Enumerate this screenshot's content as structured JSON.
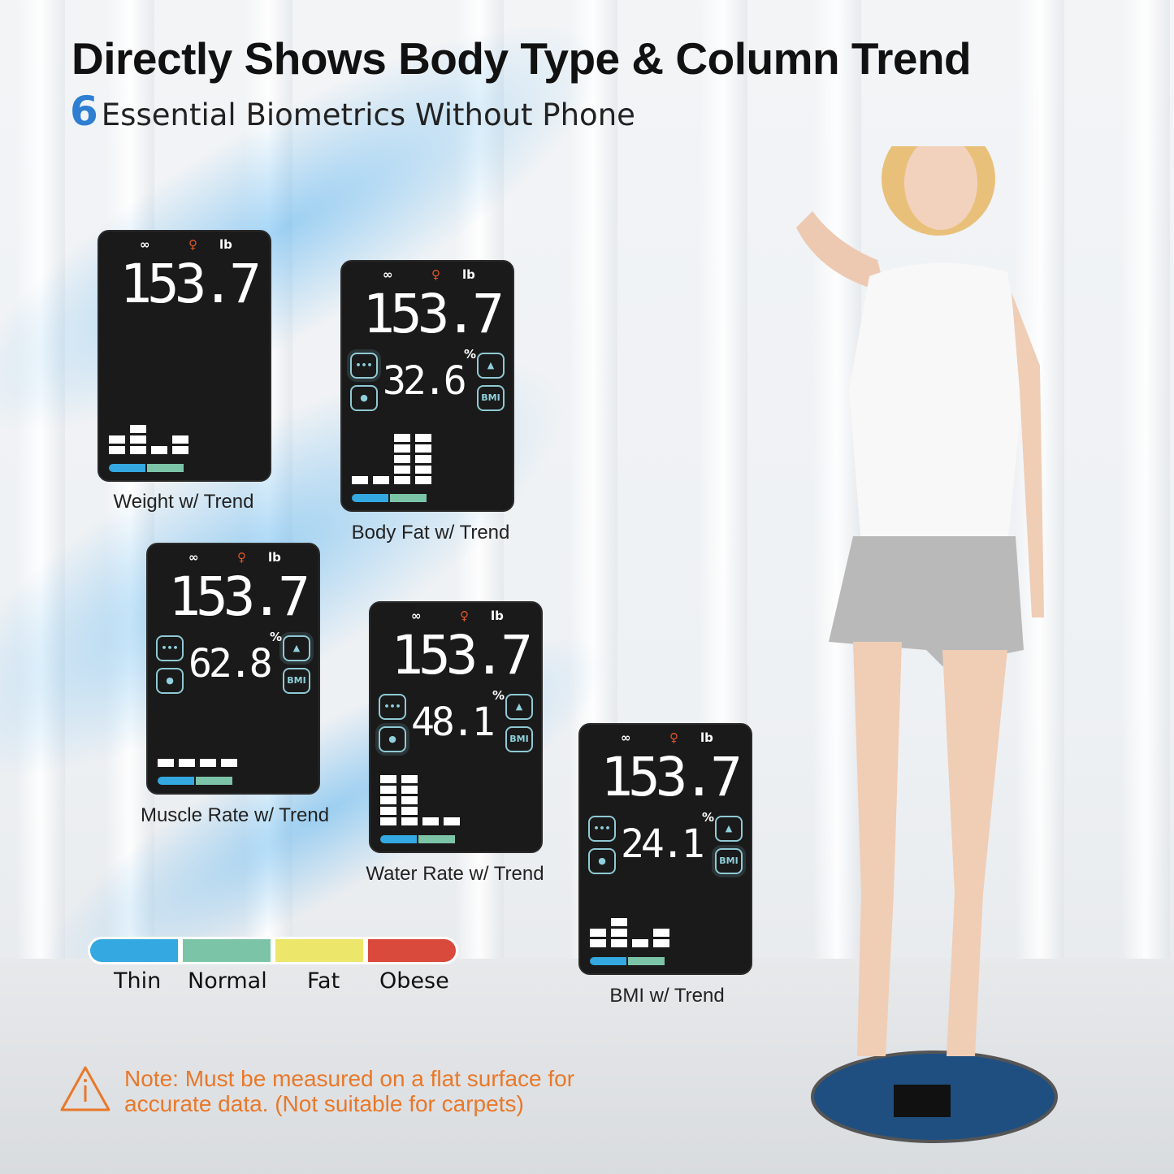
{
  "header": {
    "title": "Directly Shows Body Type & Column Trend",
    "subtitle_number": "6",
    "subtitle": "Essential Biometrics Without Phone"
  },
  "display_common": {
    "link_icon": "link-icon",
    "gender_icon": "female-icon",
    "unit": "lb",
    "percent": "%",
    "bmi_icon_label": "BMI"
  },
  "panels": [
    {
      "label": "Weight w/ Trend",
      "weight": "153.7",
      "secondary": null,
      "active": null,
      "bars": [
        2,
        3,
        1,
        2
      ]
    },
    {
      "label": "Body Fat w/ Trend",
      "weight": "153.7",
      "secondary": "32.6",
      "active": "fat",
      "bars": [
        1,
        1,
        5,
        5
      ]
    },
    {
      "label": "Muscle Rate w/ Trend",
      "weight": "153.7",
      "secondary": "62.8",
      "active": "muscle",
      "bars": [
        1,
        1,
        1,
        1
      ]
    },
    {
      "label": "Water Rate w/ Trend",
      "weight": "153.7",
      "secondary": "48.1",
      "active": "water",
      "bars": [
        5,
        5,
        1,
        1
      ]
    },
    {
      "label": "BMI w/ Trend",
      "weight": "153.7",
      "secondary": "24.1",
      "active": "bmi",
      "bars": [
        2,
        3,
        1,
        2
      ]
    }
  ],
  "legend": {
    "items": [
      {
        "label": "Thin",
        "color": "#34a8e0"
      },
      {
        "label": "Normal",
        "color": "#7cc4a8"
      },
      {
        "label": "Fat",
        "color": "#ece66a"
      },
      {
        "label": "Obese",
        "color": "#d94a3c"
      }
    ]
  },
  "note": {
    "line1": "Note: Must be measured on a flat surface for",
    "line2": "accurate data. (Not suitable for carpets)",
    "color": "#e8782a"
  }
}
